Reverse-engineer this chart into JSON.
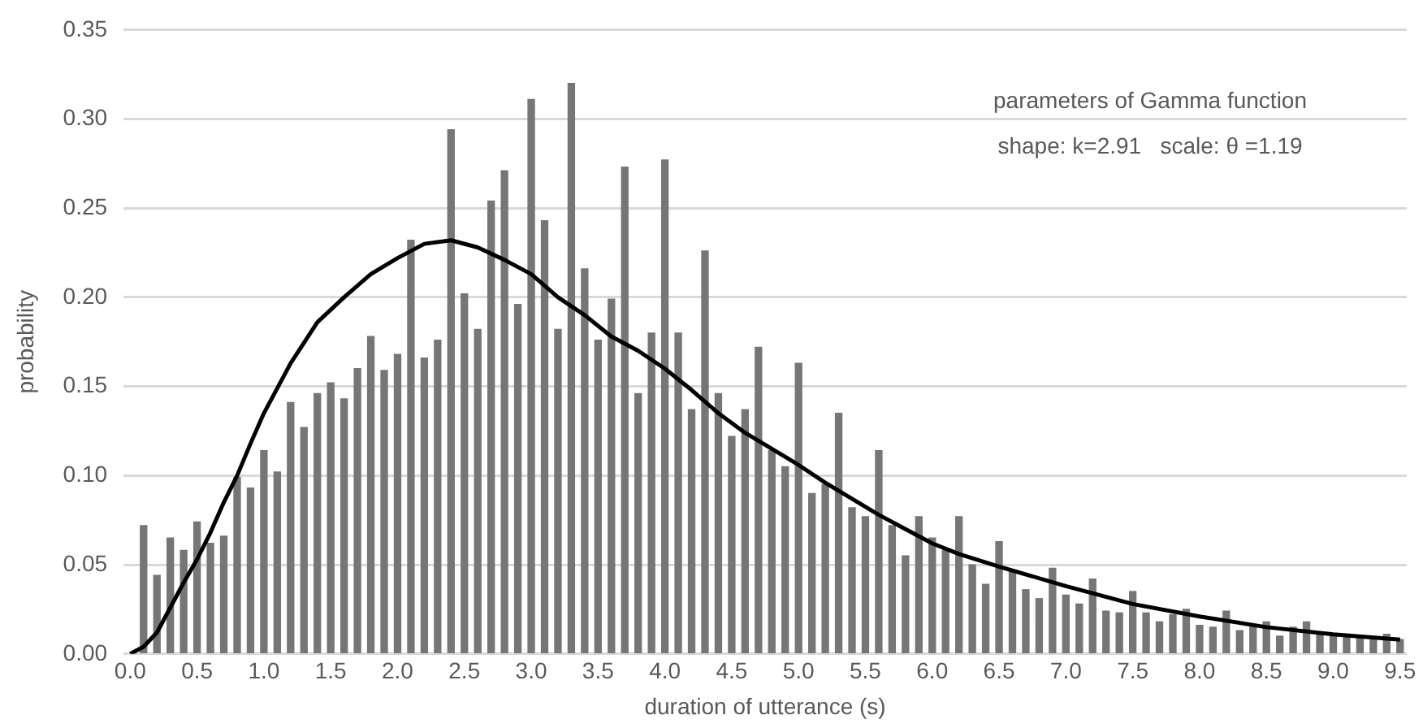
{
  "chart_data": {
    "type": "bar",
    "xlabel": "duration of utterance (s)",
    "ylabel": "probability",
    "annotations": [
      "parameters of Gamma function",
      "shape: k=2.91   scale: θ =1.19"
    ],
    "x": [
      0.1,
      0.2,
      0.3,
      0.4,
      0.5,
      0.6,
      0.7,
      0.8,
      0.9,
      1.0,
      1.1,
      1.2,
      1.3,
      1.4,
      1.5,
      1.6,
      1.7,
      1.8,
      1.9,
      2.0,
      2.1,
      2.2,
      2.3,
      2.4,
      2.5,
      2.6,
      2.7,
      2.8,
      2.9,
      3.0,
      3.1,
      3.2,
      3.3,
      3.4,
      3.5,
      3.6,
      3.7,
      3.8,
      3.9,
      4.0,
      4.1,
      4.2,
      4.3,
      4.4,
      4.5,
      4.6,
      4.7,
      4.8,
      4.9,
      5.0,
      5.1,
      5.2,
      5.3,
      5.4,
      5.5,
      5.6,
      5.7,
      5.8,
      5.9,
      6.0,
      6.1,
      6.2,
      6.3,
      6.4,
      6.5,
      6.6,
      6.7,
      6.8,
      6.9,
      7.0,
      7.1,
      7.2,
      7.3,
      7.4,
      7.5,
      7.6,
      7.7,
      7.8,
      7.9,
      8.0,
      8.1,
      8.2,
      8.3,
      8.4,
      8.5,
      8.6,
      8.7,
      8.8,
      8.9,
      9.0,
      9.1,
      9.2,
      9.3,
      9.4,
      9.5
    ],
    "series": [
      {
        "color": "#767676",
        "values": [
          0.072,
          0.044,
          0.065,
          0.058,
          0.074,
          0.062,
          0.066,
          0.099,
          0.093,
          0.114,
          0.102,
          0.141,
          0.127,
          0.146,
          0.152,
          0.143,
          0.16,
          0.178,
          0.159,
          0.168,
          0.232,
          0.166,
          0.176,
          0.294,
          0.202,
          0.182,
          0.254,
          0.271,
          0.196,
          0.311,
          0.243,
          0.182,
          0.32,
          0.216,
          0.176,
          0.199,
          0.273,
          0.146,
          0.18,
          0.277,
          0.18,
          0.137,
          0.226,
          0.146,
          0.122,
          0.137,
          0.172,
          0.114,
          0.105,
          0.163,
          0.09,
          0.095,
          0.135,
          0.082,
          0.077,
          0.114,
          0.072,
          0.055,
          0.077,
          0.065,
          0.058,
          0.077,
          0.05,
          0.039,
          0.063,
          0.047,
          0.036,
          0.031,
          0.048,
          0.033,
          0.028,
          0.042,
          0.024,
          0.023,
          0.035,
          0.023,
          0.018,
          0.022,
          0.025,
          0.016,
          0.015,
          0.024,
          0.013,
          0.016,
          0.018,
          0.01,
          0.015,
          0.018,
          0.011,
          0.01,
          0.011,
          0.01,
          0.008,
          0.011,
          0.008
        ]
      },
      {
        "type": "line",
        "color": "#000000",
        "x": [
          0,
          0.1,
          0.2,
          0.3,
          0.4,
          0.5,
          0.6,
          0.7,
          0.8,
          0.9,
          1.0,
          1.2,
          1.4,
          1.6,
          1.8,
          2.0,
          2.2,
          2.4,
          2.6,
          2.8,
          3.0,
          3.2,
          3.4,
          3.6,
          3.8,
          4.0,
          4.2,
          4.4,
          4.6,
          4.8,
          5.0,
          5.2,
          5.4,
          5.6,
          5.8,
          6.0,
          6.2,
          6.5,
          7.0,
          7.5,
          8.0,
          8.5,
          9.0,
          9.5
        ],
        "values": [
          0,
          0.004,
          0.012,
          0.026,
          0.04,
          0.053,
          0.068,
          0.085,
          0.1,
          0.118,
          0.135,
          0.163,
          0.186,
          0.2,
          0.213,
          0.222,
          0.23,
          0.232,
          0.228,
          0.221,
          0.213,
          0.2,
          0.19,
          0.178,
          0.17,
          0.16,
          0.148,
          0.135,
          0.124,
          0.115,
          0.106,
          0.096,
          0.087,
          0.078,
          0.07,
          0.062,
          0.056,
          0.049,
          0.038,
          0.028,
          0.021,
          0.015,
          0.011,
          0.008
        ]
      }
    ],
    "xlim": [
      -0.05,
      9.55
    ],
    "xticks": [
      {
        "value": 0,
        "label": "0.0"
      },
      {
        "value": 0.5,
        "label": "0.5"
      },
      {
        "value": 1,
        "label": "1.0"
      },
      {
        "value": 1.5,
        "label": "1.5"
      },
      {
        "value": 2,
        "label": "2.0"
      },
      {
        "value": 2.5,
        "label": "2.5"
      },
      {
        "value": 3,
        "label": "3.0"
      },
      {
        "value": 3.5,
        "label": "3.5"
      },
      {
        "value": 4,
        "label": "4.0"
      },
      {
        "value": 4.5,
        "label": "4.5"
      },
      {
        "value": 5,
        "label": "5.0"
      },
      {
        "value": 5.5,
        "label": "5.5"
      },
      {
        "value": 6,
        "label": "6.0"
      },
      {
        "value": 6.5,
        "label": "6.5"
      },
      {
        "value": 7,
        "label": "7.0"
      },
      {
        "value": 7.5,
        "label": "7.5"
      },
      {
        "value": 8,
        "label": "8.0"
      },
      {
        "value": 8.5,
        "label": "8.5"
      },
      {
        "value": 9,
        "label": "9.0"
      },
      {
        "value": 9.5,
        "label": "9.5"
      }
    ],
    "ylim": [
      0,
      0.35
    ],
    "yticks": [
      {
        "value": 0,
        "label": "0.00"
      },
      {
        "value": 0.05,
        "label": "0.05"
      },
      {
        "value": 0.1,
        "label": "0.10"
      },
      {
        "value": 0.15,
        "label": "0.15"
      },
      {
        "value": 0.2,
        "label": "0.20"
      },
      {
        "value": 0.25,
        "label": "0.25"
      },
      {
        "value": 0.3,
        "label": "0.30"
      },
      {
        "value": 0.35,
        "label": "0.35"
      }
    ],
    "grid": "y"
  }
}
